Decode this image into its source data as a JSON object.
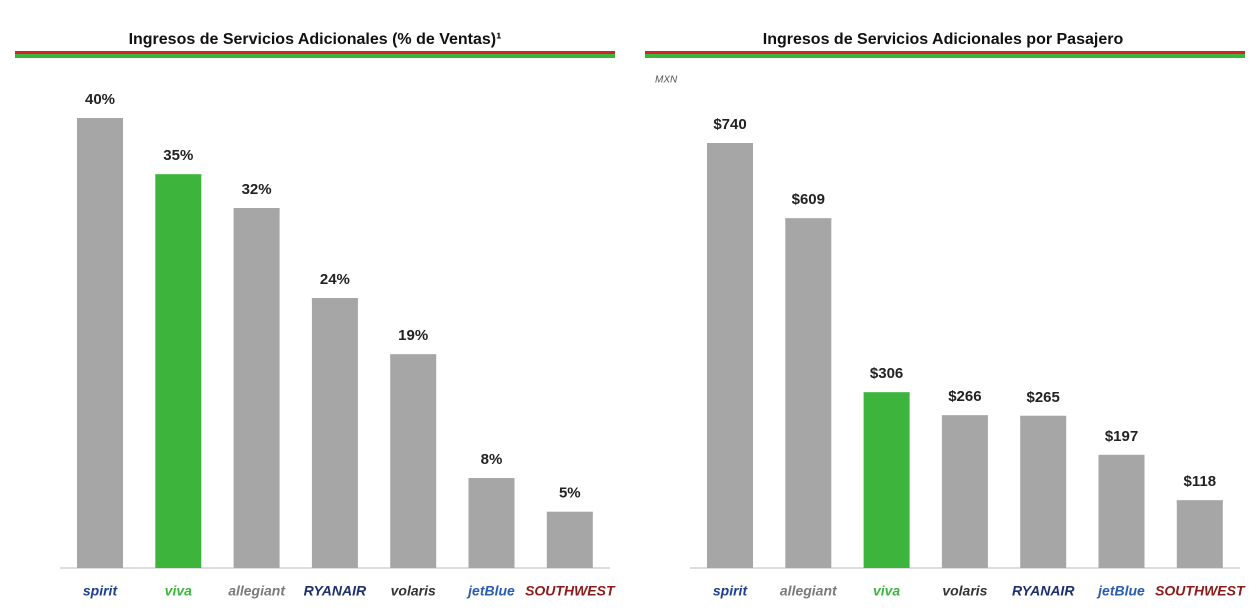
{
  "chart_data": [
    {
      "type": "bar",
      "title": "Ingresos  de Servicios Adicionales (% de Ventas)¹",
      "categories": [
        "spirit",
        "viva",
        "allegiant",
        "RYANAIR",
        "volaris",
        "jetBlue",
        "SOUTHWEST"
      ],
      "values": [
        40,
        35,
        32,
        24,
        19,
        8,
        5
      ],
      "value_labels": [
        "40%",
        "35%",
        "32%",
        "24%",
        "19%",
        "8%",
        "5%"
      ],
      "colors": [
        "#a6a6a6",
        "#3db53d",
        "#a6a6a6",
        "#a6a6a6",
        "#a6a6a6",
        "#a6a6a6",
        "#a6a6a6"
      ],
      "label_colors": [
        "#1c3f94",
        "#3db53d",
        "#7a7a7a",
        "#1c2f6e",
        "#333333",
        "#2a5db0",
        "#8b1a1a"
      ]
    },
    {
      "type": "bar",
      "title": "Ingresos de  Servicios Adicionales por Pasajero",
      "subtitle": "MXN",
      "categories": [
        "spirit",
        "allegiant",
        "viva",
        "volaris",
        "RYANAIR",
        "jetBlue",
        "SOUTHWEST"
      ],
      "values": [
        740,
        609,
        306,
        266,
        265,
        197,
        118
      ],
      "value_labels": [
        "$740",
        "$609",
        "$306",
        "$266",
        "$265",
        "$197",
        "$118"
      ],
      "colors": [
        "#a6a6a6",
        "#a6a6a6",
        "#3db53d",
        "#a6a6a6",
        "#a6a6a6",
        "#a6a6a6",
        "#a6a6a6"
      ],
      "label_colors": [
        "#1c3f94",
        "#7a7a7a",
        "#3db53d",
        "#333333",
        "#1c2f6e",
        "#2a5db0",
        "#8b1a1a"
      ]
    }
  ]
}
